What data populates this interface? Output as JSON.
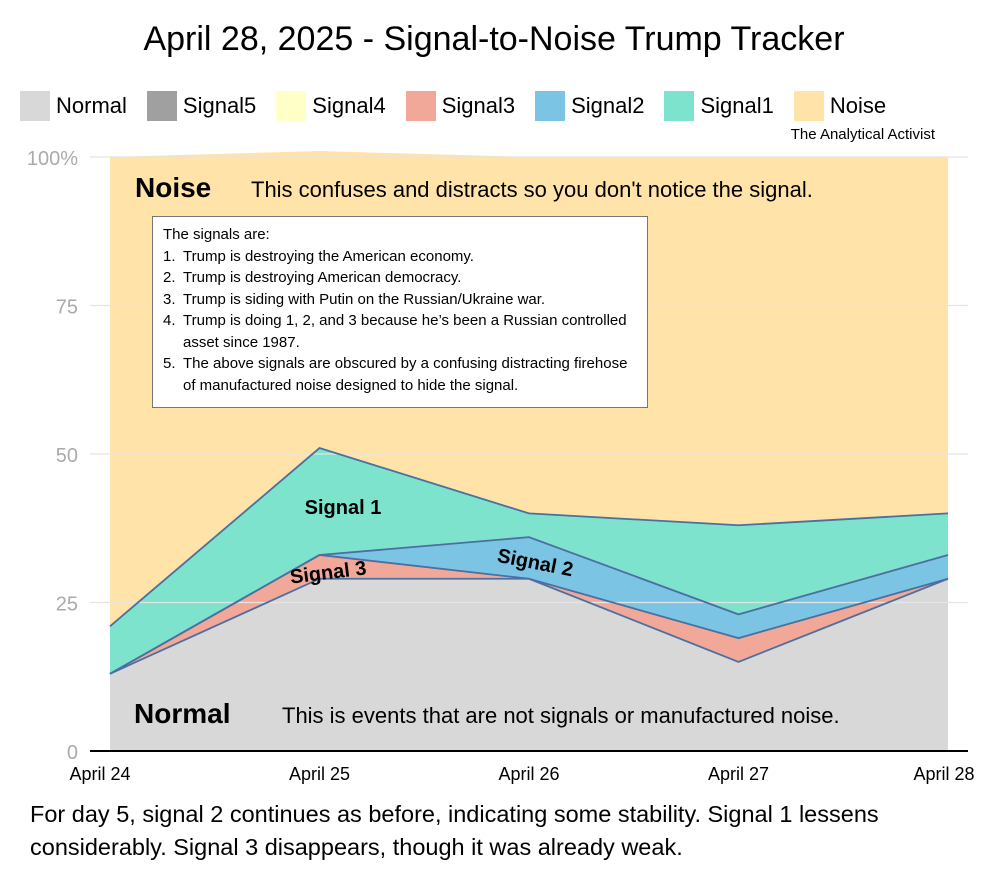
{
  "title": "April 28, 2025 - Signal-to-Noise Trump Tracker",
  "credit": "The Analytical Activist",
  "legend": [
    {
      "label": "Normal",
      "color": "#d8d8d8"
    },
    {
      "label": "Signal5",
      "color": "#a0a0a0"
    },
    {
      "label": "Signal4",
      "color": "#ffffc8"
    },
    {
      "label": "Signal3",
      "color": "#f2a898"
    },
    {
      "label": "Signal2",
      "color": "#7cc4e4"
    },
    {
      "label": "Signal1",
      "color": "#7de3cc"
    },
    {
      "label": "Noise",
      "color": "#ffe3a8"
    }
  ],
  "annotations": {
    "noise_title": "Noise",
    "noise_desc": "This confuses and distracts so you don't notice the signal.",
    "normal_title": "Normal",
    "normal_desc": "This is events that are not signals or manufactured noise.",
    "signal1": "Signal 1",
    "signal2": "Signal 2",
    "signal3": "Signal 3"
  },
  "signals_box": {
    "heading": "The signals are:",
    "items": [
      {
        "num": "1.",
        "text": "Trump is destroying the American economy."
      },
      {
        "num": "2.",
        "text": "Trump is destroying American democracy."
      },
      {
        "num": "3.",
        "text": "Trump is siding with Putin on the Russian/Ukraine war."
      },
      {
        "num": "4.",
        "text": "Trump is doing 1, 2, and 3 because he’s been a Russian controlled asset since 1987."
      },
      {
        "num": "5.",
        "text": "The above signals are obscured by a confusing distracting firehose of manufactured noise designed to hide the signal."
      }
    ]
  },
  "caption": "For day 5, signal 2 continues as before, indicating some stability. Signal 1 lessens considerably. Signal 3 disappears, though it was already weak.",
  "chart_data": {
    "type": "area",
    "stacked": true,
    "categories": [
      "April 24",
      "April 25",
      "April 26",
      "April 27",
      "April 28"
    ],
    "ylim": [
      0,
      100
    ],
    "yticks": [
      0,
      25,
      50,
      75,
      100
    ],
    "ytick_labels": [
      "0",
      "25",
      "50",
      "75",
      "100%"
    ],
    "grid": true,
    "series": [
      {
        "name": "Normal",
        "values": [
          13,
          29,
          29,
          15,
          29
        ],
        "color": "#d8d8d8"
      },
      {
        "name": "Signal5",
        "values": [
          0,
          0,
          0,
          0,
          0
        ],
        "color": "#a0a0a0"
      },
      {
        "name": "Signal4",
        "values": [
          0,
          0,
          0,
          0,
          0
        ],
        "color": "#ffffc8"
      },
      {
        "name": "Signal3",
        "values": [
          0,
          4,
          0,
          4,
          0
        ],
        "color": "#f2a898"
      },
      {
        "name": "Signal2",
        "values": [
          0,
          0,
          7,
          4,
          4
        ],
        "color": "#7cc4e4"
      },
      {
        "name": "Signal1",
        "values": [
          8,
          18,
          4,
          15,
          7
        ],
        "color": "#7de3cc"
      },
      {
        "name": "Noise",
        "values": [
          79,
          50,
          60,
          62,
          60
        ],
        "color": "#ffe3a8"
      }
    ]
  }
}
